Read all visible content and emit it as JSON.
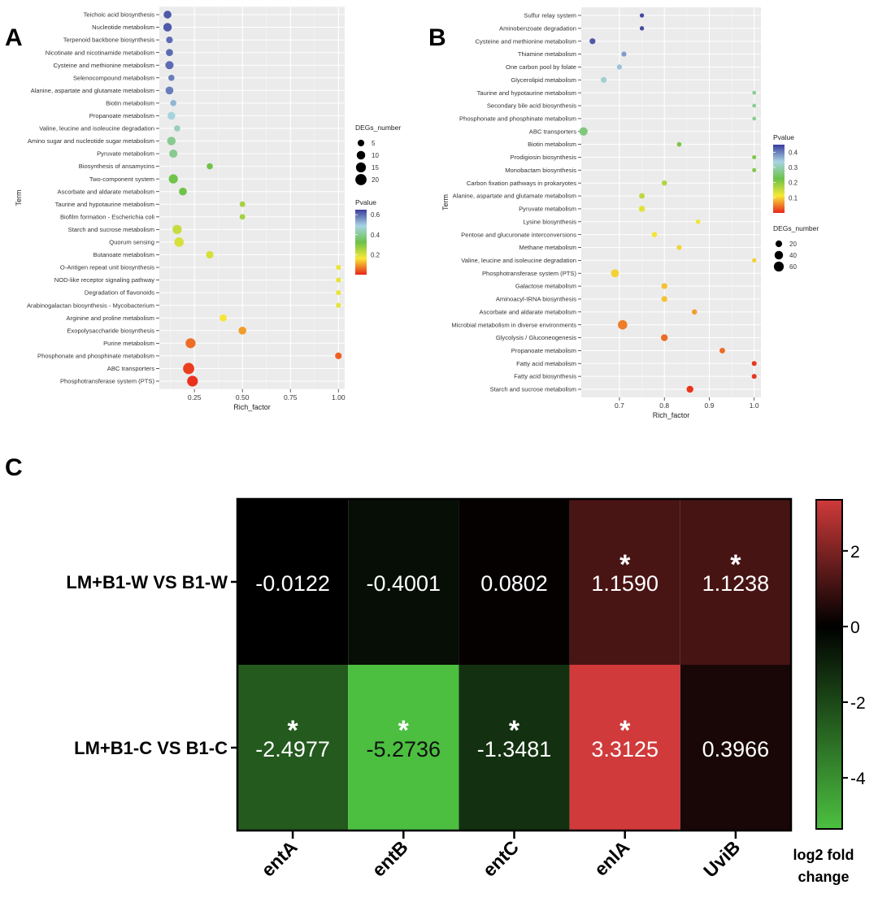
{
  "panels": {
    "a": "A",
    "b": "B",
    "c": "C"
  },
  "chart_data": [
    {
      "type": "scatter",
      "panel": "A",
      "xlabel": "Rich_factor",
      "ylabel": "Term",
      "xlim": [
        0.08,
        1.02
      ],
      "xticks": [
        0.25,
        0.5,
        0.75,
        1.0
      ],
      "xtick_labels": [
        "0.25",
        "0.50",
        "0.75",
        "1.00"
      ],
      "grid": true,
      "legend_position": "right",
      "size_legend": {
        "title": "DEGs_number",
        "values": [
          5,
          10,
          15,
          20
        ]
      },
      "color_legend": {
        "title": "Pvalue",
        "ticks": [
          0.2,
          0.4,
          0.6
        ],
        "tick_labels": [
          "0.2",
          "0.4",
          "0.6"
        ],
        "range": [
          0.0,
          0.65
        ],
        "stops": [
          "#e8251c",
          "#f7e836",
          "#6cc24a",
          "#a9d4e4",
          "#3a3d9c"
        ]
      },
      "points": [
        {
          "term": "Teichoic acid biosynthesis",
          "x": 0.11,
          "deg": 8,
          "p": 0.62
        },
        {
          "term": "Nucleotide metabolism",
          "x": 0.11,
          "deg": 10,
          "p": 0.62
        },
        {
          "term": "Terpenoid backbone biosynthesis",
          "x": 0.12,
          "deg": 5,
          "p": 0.6
        },
        {
          "term": "Nicotinate and nicotinamide metabolism",
          "x": 0.12,
          "deg": 6,
          "p": 0.6
        },
        {
          "term": "Cysteine and methionine metabolism",
          "x": 0.12,
          "deg": 9,
          "p": 0.6
        },
        {
          "term": "Selenocompound metabolism",
          "x": 0.13,
          "deg": 4,
          "p": 0.58
        },
        {
          "term": "Alanine, aspartate and glutamate metabolism",
          "x": 0.12,
          "deg": 8,
          "p": 0.58
        },
        {
          "term": "Biotin metabolism",
          "x": 0.14,
          "deg": 4,
          "p": 0.52
        },
        {
          "term": "Propanoate metabolism",
          "x": 0.13,
          "deg": 8,
          "p": 0.48
        },
        {
          "term": "Valine, leucine and isoleucine degradation",
          "x": 0.16,
          "deg": 4,
          "p": 0.44
        },
        {
          "term": "Amino sugar and nucleotide sugar metabolism",
          "x": 0.13,
          "deg": 10,
          "p": 0.4
        },
        {
          "term": "Pyruvate metabolism",
          "x": 0.14,
          "deg": 9,
          "p": 0.4
        },
        {
          "term": "Biosynthesis of ansamycins",
          "x": 0.33,
          "deg": 4,
          "p": 0.32
        },
        {
          "term": "Two-component system",
          "x": 0.14,
          "deg": 12,
          "p": 0.32
        },
        {
          "term": "Ascorbate and aldarate metabolism",
          "x": 0.19,
          "deg": 8,
          "p": 0.32
        },
        {
          "term": "Taurine and hypotaurine metabolism",
          "x": 0.5,
          "deg": 3,
          "p": 0.26
        },
        {
          "term": "Biofilm formation - Escherichia coli",
          "x": 0.5,
          "deg": 3,
          "p": 0.26
        },
        {
          "term": "Starch and sucrose metabolism",
          "x": 0.16,
          "deg": 12,
          "p": 0.22
        },
        {
          "term": "Quorum sensing",
          "x": 0.17,
          "deg": 13,
          "p": 0.2
        },
        {
          "term": "Butanoate metabolism",
          "x": 0.33,
          "deg": 7,
          "p": 0.2
        },
        {
          "term": "O-Antigen repeat unit biosynthesis",
          "x": 1.0,
          "deg": 2,
          "p": 0.18
        },
        {
          "term": "NOD-like receptor signaling pathway",
          "x": 1.0,
          "deg": 2,
          "p": 0.18
        },
        {
          "term": "Degradation of flavonoids",
          "x": 1.0,
          "deg": 2,
          "p": 0.18
        },
        {
          "term": "Arabinogalactan biosynthesis - Mycobacterium",
          "x": 1.0,
          "deg": 2,
          "p": 0.18
        },
        {
          "term": "Arginine and proline metabolism",
          "x": 0.4,
          "deg": 6,
          "p": 0.16
        },
        {
          "term": "Exopolysaccharide biosynthesis",
          "x": 0.5,
          "deg": 8,
          "p": 0.1
        },
        {
          "term": "Purine metabolism",
          "x": 0.23,
          "deg": 15,
          "p": 0.06
        },
        {
          "term": "Phosphonate and phosphinate metabolism",
          "x": 1.0,
          "deg": 5,
          "p": 0.05
        },
        {
          "term": "ABC transporters",
          "x": 0.22,
          "deg": 20,
          "p": 0.02
        },
        {
          "term": "Phosphotransferase system (PTS)",
          "x": 0.24,
          "deg": 18,
          "p": 0.01
        }
      ]
    },
    {
      "type": "scatter",
      "panel": "B",
      "xlabel": "Rich_factor",
      "ylabel": "Term",
      "xlim": [
        0.615,
        1.015
      ],
      "xticks": [
        0.7,
        0.8,
        0.9,
        1.0
      ],
      "xtick_labels": [
        "0.7",
        "0.8",
        "0.9",
        "1.0"
      ],
      "grid": true,
      "legend_position": "right",
      "size_legend": {
        "title": "DEGs_number",
        "values": [
          20,
          40,
          60
        ]
      },
      "color_legend": {
        "title": "Pvalue",
        "ticks": [
          0.1,
          0.2,
          0.3,
          0.4
        ],
        "tick_labels": [
          "0.1",
          "0.2",
          "0.3",
          "0.4"
        ],
        "range": [
          0.0,
          0.45
        ],
        "stops": [
          "#e8251c",
          "#f7e836",
          "#6cc24a",
          "#a9d4e4",
          "#3a3d9c"
        ]
      },
      "points": [
        {
          "term": "Sulfur relay system",
          "x": 0.75,
          "deg": 5,
          "p": 0.44
        },
        {
          "term": "Aminobenzoate degradation",
          "x": 0.75,
          "deg": 5,
          "p": 0.44
        },
        {
          "term": "Cysteine and methionine metabolism",
          "x": 0.64,
          "deg": 14,
          "p": 0.43
        },
        {
          "term": "Thiamine metabolism",
          "x": 0.71,
          "deg": 8,
          "p": 0.38
        },
        {
          "term": "One carbon pool by folate",
          "x": 0.7,
          "deg": 9,
          "p": 0.35
        },
        {
          "term": "Glycerolipid metabolism",
          "x": 0.665,
          "deg": 14,
          "p": 0.32
        },
        {
          "term": "Taurine and hypotaurine metabolism",
          "x": 1.0,
          "deg": 3,
          "p": 0.28
        },
        {
          "term": "Secondary bile acid biosynthesis",
          "x": 1.0,
          "deg": 3,
          "p": 0.28
        },
        {
          "term": "Phosphonate and phosphinate metabolism",
          "x": 1.0,
          "deg": 3,
          "p": 0.28
        },
        {
          "term": "ABC transporters",
          "x": 0.62,
          "deg": 38,
          "p": 0.26
        },
        {
          "term": "Biotin metabolism",
          "x": 0.833,
          "deg": 6,
          "p": 0.21
        },
        {
          "term": "Prodigiosin biosynthesis",
          "x": 1.0,
          "deg": 4,
          "p": 0.21
        },
        {
          "term": "Monobactam biosynthesis",
          "x": 1.0,
          "deg": 4,
          "p": 0.21
        },
        {
          "term": "Carbon fixation pathways in prokaryotes",
          "x": 0.8,
          "deg": 10,
          "p": 0.17
        },
        {
          "term": "Alanine, aspartate and glutamate metabolism",
          "x": 0.75,
          "deg": 12,
          "p": 0.16
        },
        {
          "term": "Pyruvate metabolism",
          "x": 0.75,
          "deg": 16,
          "p": 0.13
        },
        {
          "term": "Lysine biosynthesis",
          "x": 0.875,
          "deg": 6,
          "p": 0.12
        },
        {
          "term": "Pentose and glucuronate interconversions",
          "x": 0.778,
          "deg": 10,
          "p": 0.11
        },
        {
          "term": "Methane metabolism",
          "x": 0.833,
          "deg": 8,
          "p": 0.1
        },
        {
          "term": "Valine, leucine and isoleucine degradation",
          "x": 1.0,
          "deg": 5,
          "p": 0.1
        },
        {
          "term": "Phosphotransferase system (PTS)",
          "x": 0.69,
          "deg": 34,
          "p": 0.1
        },
        {
          "term": "Galactose metabolism",
          "x": 0.8,
          "deg": 14,
          "p": 0.09
        },
        {
          "term": "Aminoacyl-tRNA biosynthesis",
          "x": 0.8,
          "deg": 14,
          "p": 0.09
        },
        {
          "term": "Ascorbate and aldarate metabolism",
          "x": 0.867,
          "deg": 10,
          "p": 0.07
        },
        {
          "term": "Microbial metabolism in diverse environments",
          "x": 0.707,
          "deg": 52,
          "p": 0.05
        },
        {
          "term": "Glycolysis / Gluconeogenesis",
          "x": 0.8,
          "deg": 22,
          "p": 0.04
        },
        {
          "term": "Propanoate metabolism",
          "x": 0.929,
          "deg": 12,
          "p": 0.04
        },
        {
          "term": "Fatty acid metabolism",
          "x": 1.0,
          "deg": 8,
          "p": 0.01
        },
        {
          "term": "Fatty acid biosynthesis",
          "x": 1.0,
          "deg": 8,
          "p": 0.01
        },
        {
          "term": "Starch and sucrose metabolism",
          "x": 0.857,
          "deg": 22,
          "p": 0.01
        }
      ]
    },
    {
      "type": "heatmap",
      "panel": "C",
      "rows": [
        "LM+B1-W VS B1-W",
        "LM+B1-C VS B1-C"
      ],
      "columns": [
        "entA",
        "entB",
        "entC",
        "enlA",
        "UviB"
      ],
      "values": [
        [
          -0.0122,
          -0.4001,
          0.0802,
          1.159,
          1.1238
        ],
        [
          -2.4977,
          -5.2736,
          -1.3481,
          3.3125,
          0.3966
        ]
      ],
      "cell_labels": [
        [
          "-0.0122",
          "-0.4001",
          "0.0802",
          "1.1590",
          "1.1238"
        ],
        [
          "-2.4977",
          "-5.2736",
          "-1.3481",
          "3.3125",
          "0.3966"
        ]
      ],
      "significant": [
        [
          false,
          false,
          false,
          true,
          true
        ],
        [
          true,
          true,
          true,
          true,
          false
        ]
      ],
      "significance_mark": "*",
      "color_scale": {
        "min": -5.3,
        "max": 3.3,
        "low": "#4cc040",
        "mid": "#000000",
        "high": "#d03a3a"
      },
      "colorbar": {
        "title": "log2 fold change",
        "title_lines": [
          "log2 fold",
          "change"
        ],
        "ticks": [
          2,
          0,
          -2,
          -4
        ],
        "tick_labels": [
          "2",
          "0",
          "-2",
          "-4"
        ]
      }
    }
  ]
}
